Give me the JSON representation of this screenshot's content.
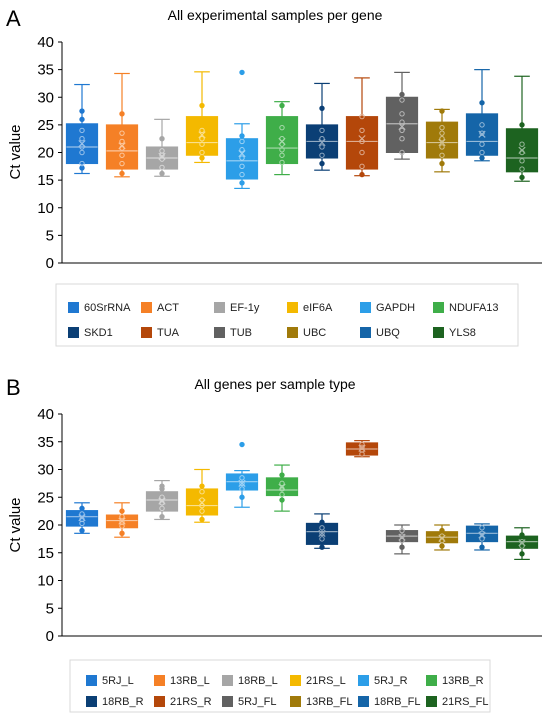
{
  "colors": {
    "c60": "#1f78d1",
    "cACT": "#f58026",
    "cEF": "#a6a6a6",
    "cEIF": "#f4b900",
    "cGAPDH": "#2c9ee8",
    "cNDUFA": "#3fae49",
    "cSKD1": "#0b3f75",
    "cTUA": "#b4470a",
    "cTUB": "#616161",
    "cUBC": "#a07a0a",
    "cUBQ": "#1565a8",
    "cYLS8": "#1d6320",
    "axis": "#000000",
    "gridTop": "#d9d9d9"
  },
  "chart_data": [
    {
      "panel": "A",
      "type": "box",
      "title": "All experimental samples per gene",
      "ylabel": "Ct value",
      "ylim": [
        0,
        40
      ],
      "yticks": [
        "0",
        "5",
        "10",
        "15",
        "20",
        "25",
        "30",
        "35",
        "40"
      ],
      "legend": [
        "60SrRNA",
        "ACT",
        "EF-1y",
        "eIF6A",
        "GAPDH",
        "NDUFA13",
        "SKD1",
        "TUA",
        "TUB",
        "UBC",
        "UBQ",
        "YLS8"
      ],
      "series": [
        {
          "name": "60SrRNA",
          "color": "c60",
          "min": 16.2,
          "q1": 18.0,
          "median": 21.0,
          "q3": 25.2,
          "max": 32.3,
          "mean": 21.6,
          "points": [
            17.2,
            18.0,
            20.0,
            21.0,
            22.5,
            24.0,
            26.0,
            27.5
          ]
        },
        {
          "name": "ACT",
          "color": "cACT",
          "min": 15.6,
          "q1": 17.0,
          "median": 20.3,
          "q3": 25.0,
          "max": 34.3,
          "mean": 21.2,
          "points": [
            16.2,
            18.0,
            19.5,
            20.8,
            22.0,
            23.5,
            27.0
          ]
        },
        {
          "name": "EF-1y",
          "color": "cEF",
          "min": 15.7,
          "q1": 17.0,
          "median": 19.0,
          "q3": 21.0,
          "max": 26.0,
          "mean": 19.3,
          "points": [
            16.2,
            17.3,
            18.8,
            19.5,
            20.3,
            22.5
          ]
        },
        {
          "name": "eIF6A",
          "color": "cEIF",
          "min": 18.2,
          "q1": 19.5,
          "median": 21.8,
          "q3": 26.5,
          "max": 34.6,
          "mean": 23.2,
          "points": [
            19.0,
            20.0,
            21.5,
            22.5,
            24.0,
            28.5
          ]
        },
        {
          "name": "GAPDH",
          "color": "cGAPDH",
          "min": 13.5,
          "q1": 15.2,
          "median": 18.5,
          "q3": 22.5,
          "max": 25.2,
          "mean": 19.8,
          "points": [
            14.5,
            16.0,
            17.5,
            19.0,
            20.5,
            22.0,
            23.0,
            34.5
          ]
        },
        {
          "name": "NDUFA13",
          "color": "cNDUFA",
          "min": 16.0,
          "q1": 18.0,
          "median": 20.8,
          "q3": 26.5,
          "max": 29.2,
          "mean": 22.0,
          "points": [
            18.2,
            19.5,
            20.5,
            21.5,
            22.5,
            24.5,
            28.5
          ]
        },
        {
          "name": "SKD1",
          "color": "cSKD1",
          "min": 16.8,
          "q1": 19.0,
          "median": 22.0,
          "q3": 25.0,
          "max": 32.5,
          "mean": 21.8,
          "points": [
            18.0,
            19.5,
            21.0,
            22.5,
            24.0,
            28.0
          ]
        },
        {
          "name": "TUA",
          "color": "cTUA",
          "min": 15.8,
          "q1": 17.0,
          "median": 22.0,
          "q3": 26.5,
          "max": 33.5,
          "mean": 22.5,
          "points": [
            16.0,
            17.5,
            20.0,
            22.0,
            24.0,
            26.5
          ]
        },
        {
          "name": "TUB",
          "color": "cTUB",
          "min": 18.8,
          "q1": 20.0,
          "median": 25.2,
          "q3": 30.0,
          "max": 34.5,
          "mean": 24.7,
          "points": [
            20.0,
            22.5,
            24.0,
            25.5,
            27.0,
            29.5,
            30.5
          ]
        },
        {
          "name": "UBC",
          "color": "cUBC",
          "min": 16.5,
          "q1": 19.0,
          "median": 21.8,
          "q3": 25.5,
          "max": 27.8,
          "mean": 21.8,
          "points": [
            18.0,
            19.5,
            21.0,
            22.5,
            23.5,
            24.5,
            27.5
          ]
        },
        {
          "name": "UBQ",
          "color": "cUBQ",
          "min": 18.5,
          "q1": 19.5,
          "median": 22.0,
          "q3": 27.0,
          "max": 35.0,
          "mean": 23.3,
          "points": [
            19.0,
            20.0,
            21.5,
            23.5,
            25.0,
            29.0
          ]
        },
        {
          "name": "YLS8",
          "color": "cYLS8",
          "min": 14.8,
          "q1": 16.5,
          "median": 19.0,
          "q3": 24.3,
          "max": 33.8,
          "mean": 20.4,
          "points": [
            15.5,
            17.0,
            18.5,
            20.0,
            21.5,
            25.0
          ]
        }
      ]
    },
    {
      "panel": "B",
      "type": "box",
      "title": "All genes per sample type",
      "ylabel": "Ct value",
      "ylim": [
        0,
        40
      ],
      "yticks": [
        "0",
        "5",
        "10",
        "15",
        "20",
        "25",
        "30",
        "35",
        "40"
      ],
      "legend": [
        "5RJ_L",
        "13RB_L",
        "18RB_L",
        "21RS_L",
        "5RJ_R",
        "13RB_R",
        "18RB_R",
        "21RS_R",
        "5RJ_FL",
        "13RB_FL",
        "18RB_FL",
        "21RS_FL"
      ],
      "series": [
        {
          "name": "5RJ_L",
          "color": "c60",
          "min": 18.5,
          "q1": 19.8,
          "median": 21.5,
          "q3": 22.6,
          "max": 24.0,
          "mean": 21.3,
          "points": [
            19.0,
            20.3,
            21.0,
            22.0,
            23.0
          ]
        },
        {
          "name": "13RB_L",
          "color": "cACT",
          "min": 17.8,
          "q1": 19.5,
          "median": 20.8,
          "q3": 21.8,
          "max": 24.0,
          "mean": 20.7,
          "points": [
            18.5,
            19.8,
            20.5,
            21.5,
            22.5
          ]
        },
        {
          "name": "18RB_L",
          "color": "cEF",
          "min": 21.0,
          "q1": 22.5,
          "median": 24.5,
          "q3": 26.0,
          "max": 28.0,
          "mean": 24.3,
          "points": [
            21.5,
            23.0,
            24.0,
            25.0,
            26.5,
            27.0
          ]
        },
        {
          "name": "21RS_L",
          "color": "cEIF",
          "min": 20.5,
          "q1": 21.8,
          "median": 23.5,
          "q3": 26.5,
          "max": 30.0,
          "mean": 24.0,
          "points": [
            21.0,
            22.5,
            23.5,
            24.5,
            26.0,
            27.0
          ]
        },
        {
          "name": "5RJ_R",
          "color": "cGAPDH",
          "min": 23.2,
          "q1": 26.3,
          "median": 27.8,
          "q3": 29.2,
          "max": 29.8,
          "mean": 27.5,
          "points": [
            25.0,
            26.5,
            27.5,
            28.5,
            34.5
          ]
        },
        {
          "name": "13RB_R",
          "color": "cNDUFA",
          "min": 22.5,
          "q1": 25.3,
          "median": 26.3,
          "q3": 28.5,
          "max": 30.8,
          "mean": 26.8,
          "points": [
            24.5,
            25.5,
            26.5,
            27.5,
            29.0
          ]
        },
        {
          "name": "18RB_R",
          "color": "cSKD1",
          "min": 15.8,
          "q1": 16.5,
          "median": 18.8,
          "q3": 20.3,
          "max": 22.0,
          "mean": 18.5,
          "points": [
            16.0,
            17.5,
            18.5,
            19.5,
            20.5
          ]
        },
        {
          "name": "21RS_R",
          "color": "cTUA",
          "min": 32.3,
          "q1": 32.6,
          "median": 33.7,
          "q3": 34.8,
          "max": 35.2,
          "mean": 33.8,
          "points": [
            32.8,
            33.5,
            34.0,
            34.5
          ]
        },
        {
          "name": "5RJ_FL",
          "color": "cTUB",
          "min": 14.8,
          "q1": 17.0,
          "median": 18.0,
          "q3": 19.0,
          "max": 20.0,
          "mean": 17.8,
          "points": [
            16.0,
            17.2,
            18.0,
            19.0
          ]
        },
        {
          "name": "13RB_FL",
          "color": "cUBC",
          "min": 15.5,
          "q1": 16.8,
          "median": 17.8,
          "q3": 18.8,
          "max": 20.0,
          "mean": 17.6,
          "points": [
            16.2,
            17.2,
            18.0,
            19.0
          ]
        },
        {
          "name": "18RB_FL",
          "color": "cUBQ",
          "min": 15.5,
          "q1": 17.0,
          "median": 18.5,
          "q3": 19.8,
          "max": 20.2,
          "mean": 18.2,
          "points": [
            16.0,
            17.5,
            18.5,
            19.5
          ]
        },
        {
          "name": "21RS_FL",
          "color": "cYLS8",
          "min": 13.8,
          "q1": 15.8,
          "median": 17.0,
          "q3": 18.0,
          "max": 19.5,
          "mean": 16.8,
          "points": [
            14.8,
            16.2,
            17.0,
            18.2
          ]
        }
      ]
    }
  ]
}
